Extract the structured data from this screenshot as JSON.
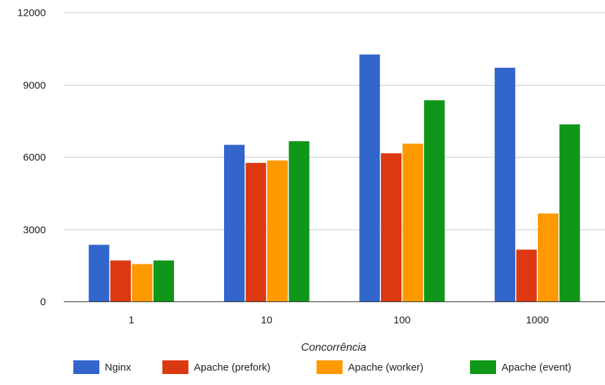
{
  "chart_data": {
    "type": "bar",
    "title": "",
    "xlabel": "Concorrência",
    "ylabel": "",
    "categories": [
      "1",
      "10",
      "100",
      "1000"
    ],
    "ylim": [
      0,
      12000
    ],
    "yticks": [
      0,
      3000,
      6000,
      9000,
      12000
    ],
    "grid": true,
    "legend_position": "bottom",
    "series": [
      {
        "name": "Nginx",
        "color": "#3366cc",
        "values": [
          2350,
          6500,
          10250,
          9700
        ]
      },
      {
        "name": "Apache (prefork)",
        "color": "#dc3912",
        "values": [
          1700,
          5750,
          6150,
          2150
        ]
      },
      {
        "name": "Apache (worker)",
        "color": "#ff9900",
        "values": [
          1550,
          5850,
          6550,
          3650
        ]
      },
      {
        "name": "Apache (event)",
        "color": "#109618",
        "values": [
          1700,
          6650,
          8350,
          7350
        ]
      }
    ]
  }
}
